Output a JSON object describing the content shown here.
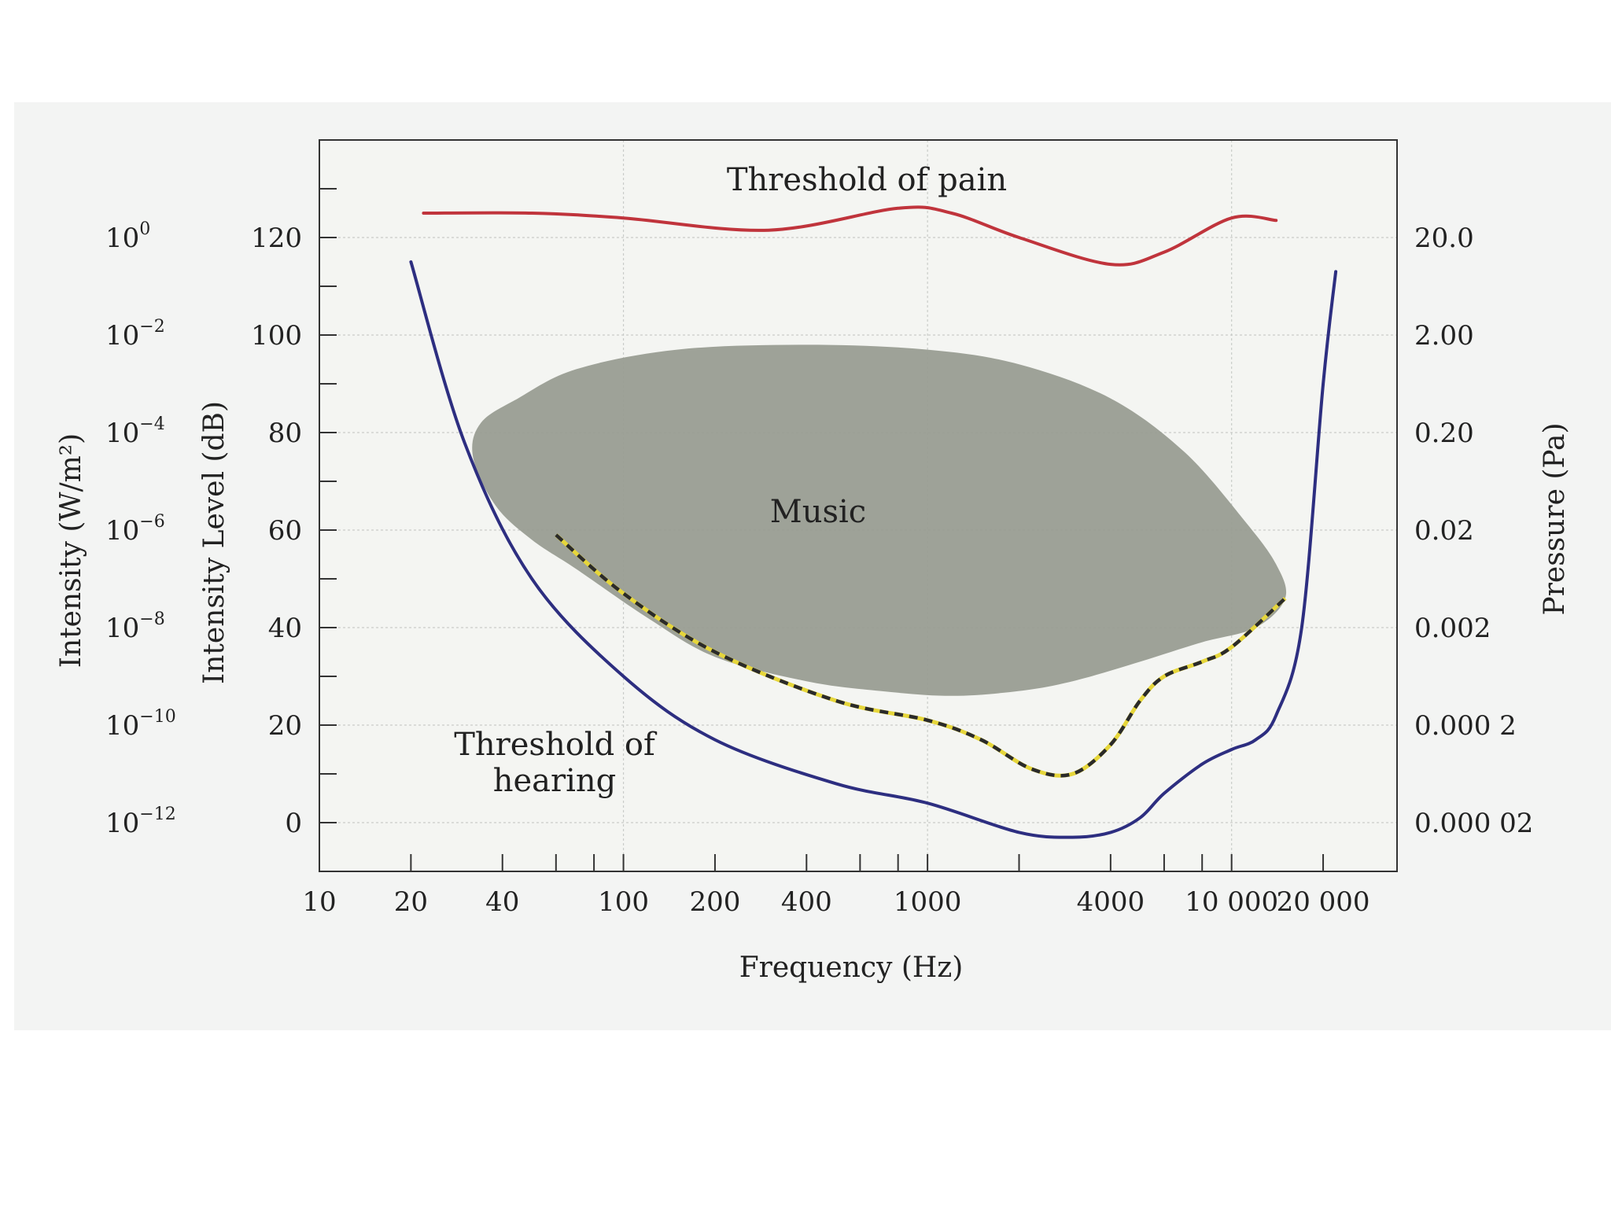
{
  "chart_data": {
    "type": "line",
    "xlabel": "Frequency (Hz)",
    "ylabel_left": "Intensity Level (dB)",
    "ylabel_intensity": "Intensity (W/m²)",
    "ylabel_right": "Pressure (Pa)",
    "x_scale": "log",
    "xlim": [
      10,
      35000
    ],
    "ylim": [
      -10,
      140
    ],
    "grid": true,
    "x_ticks": [
      {
        "value": 10,
        "label": "10"
      },
      {
        "value": 20,
        "label": "20"
      },
      {
        "value": 40,
        "label": "40"
      },
      {
        "value": 100,
        "label": "100"
      },
      {
        "value": 200,
        "label": "200"
      },
      {
        "value": 400,
        "label": "400"
      },
      {
        "value": 1000,
        "label": "1000"
      },
      {
        "value": 4000,
        "label": "4000"
      },
      {
        "value": 10000,
        "label": "10 000"
      },
      {
        "value": 20000,
        "label": "20 000"
      }
    ],
    "x_minor_ticks": [
      60,
      80,
      600,
      800,
      2000,
      6000,
      8000
    ],
    "y_ticks": [
      0,
      20,
      40,
      60,
      80,
      100,
      120
    ],
    "intensity_ticks": [
      {
        "y": 120,
        "base": "10",
        "exp": "0"
      },
      {
        "y": 100,
        "base": "10",
        "exp": "−2"
      },
      {
        "y": 80,
        "base": "10",
        "exp": "−4"
      },
      {
        "y": 60,
        "base": "10",
        "exp": "−6"
      },
      {
        "y": 40,
        "base": "10",
        "exp": "−8"
      },
      {
        "y": 20,
        "base": "10",
        "exp": "−10"
      },
      {
        "y": 0,
        "base": "10",
        "exp": "−12"
      }
    ],
    "pressure_ticks": [
      {
        "y": 120,
        "label": "20.0"
      },
      {
        "y": 100,
        "label": "2.00"
      },
      {
        "y": 80,
        "label": "0.20"
      },
      {
        "y": 60,
        "label": "0.02"
      },
      {
        "y": 40,
        "label": "0.002"
      },
      {
        "y": 20,
        "label": "0.000 2"
      },
      {
        "y": 0,
        "label": "0.000 02"
      }
    ],
    "annotations": {
      "pain": "Threshold of pain",
      "music": "Music",
      "hearing_line1": "Threshold of",
      "hearing_line2": "hearing"
    },
    "series": [
      {
        "key": "pain",
        "color": "#c0343c",
        "points": [
          [
            22,
            125
          ],
          [
            50,
            125
          ],
          [
            100,
            124
          ],
          [
            300,
            121.5
          ],
          [
            800,
            126
          ],
          [
            1200,
            125
          ],
          [
            2000,
            120
          ],
          [
            4000,
            114.5
          ],
          [
            6000,
            117
          ],
          [
            10000,
            124
          ],
          [
            14000,
            123.5
          ]
        ]
      },
      {
        "key": "hearing",
        "color": "#2d2e80",
        "points": [
          [
            20,
            115
          ],
          [
            30,
            78
          ],
          [
            50,
            50
          ],
          [
            100,
            30
          ],
          [
            200,
            17
          ],
          [
            500,
            8
          ],
          [
            1000,
            4
          ],
          [
            2000,
            -2
          ],
          [
            3000,
            -3
          ],
          [
            4000,
            -2
          ],
          [
            5000,
            1
          ],
          [
            6000,
            6
          ],
          [
            8000,
            12
          ],
          [
            10000,
            15
          ],
          [
            12000,
            17
          ],
          [
            14000,
            22
          ],
          [
            17000,
            40
          ],
          [
            20000,
            90
          ],
          [
            22000,
            113
          ]
        ]
      },
      {
        "key": "music_lower_edge",
        "color": "#2a2a2a",
        "accent": "#e6d63a",
        "dashed": true,
        "points": [
          [
            60,
            59
          ],
          [
            100,
            47
          ],
          [
            200,
            35
          ],
          [
            500,
            25
          ],
          [
            1000,
            21
          ],
          [
            1500,
            17
          ],
          [
            2200,
            11
          ],
          [
            3000,
            10
          ],
          [
            4000,
            16
          ],
          [
            5000,
            25
          ],
          [
            6000,
            30
          ],
          [
            8000,
            33
          ],
          [
            10000,
            36
          ],
          [
            15000,
            46
          ]
        ]
      }
    ],
    "region": {
      "key": "music",
      "color": "#999d92",
      "points": [
        [
          32,
          75
        ],
        [
          34,
          82
        ],
        [
          45,
          87
        ],
        [
          70,
          93
        ],
        [
          150,
          97
        ],
        [
          400,
          98
        ],
        [
          1000,
          97
        ],
        [
          2000,
          94
        ],
        [
          4000,
          87
        ],
        [
          7000,
          76
        ],
        [
          11000,
          62
        ],
        [
          14000,
          53
        ],
        [
          15000,
          46
        ],
        [
          12000,
          40
        ],
        [
          8000,
          37
        ],
        [
          5000,
          33
        ],
        [
          3000,
          29
        ],
        [
          2000,
          27
        ],
        [
          1200,
          26
        ],
        [
          700,
          27
        ],
        [
          400,
          29
        ],
        [
          200,
          34
        ],
        [
          120,
          42
        ],
        [
          70,
          52
        ],
        [
          50,
          58
        ],
        [
          38,
          65
        ]
      ]
    }
  }
}
